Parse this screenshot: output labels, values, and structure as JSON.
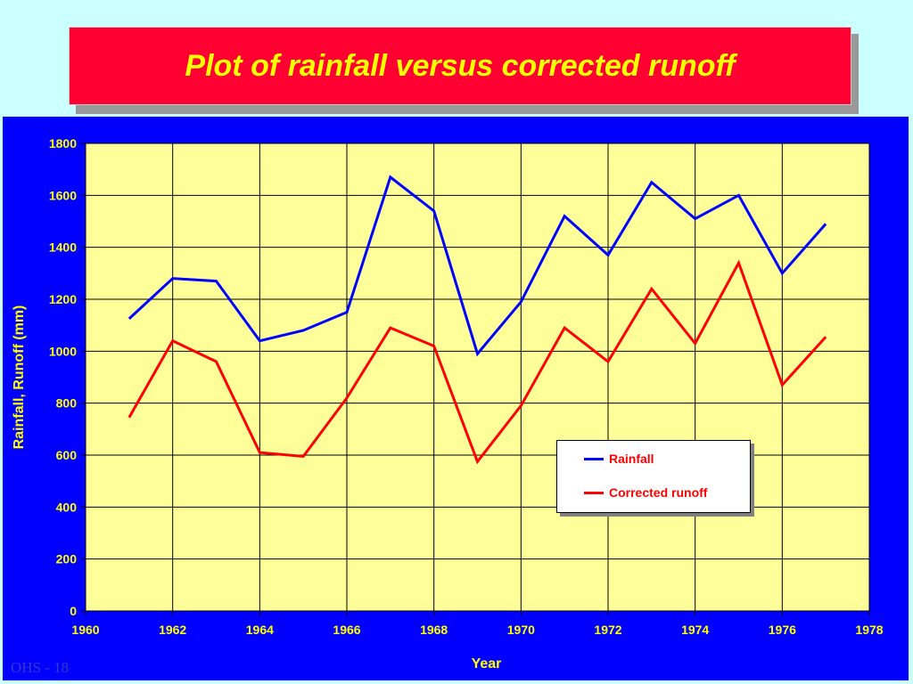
{
  "title": "Plot of rainfall versus corrected runoff",
  "footer": "OHS - 18",
  "colors": {
    "page_bg": "#ccffff",
    "title_bg": "#ff0033",
    "title_text": "#ffff00",
    "panel_bg": "#0000ff",
    "plot_bg": "#ffff99",
    "axis_text": "#ffff00",
    "legend_text": "#ff0000"
  },
  "chart_data": {
    "type": "line",
    "title": "",
    "xlabel": "Year",
    "ylabel": "Rainfall, Runoff (mm)",
    "xlim": [
      1960,
      1978
    ],
    "ylim": [
      0,
      1800
    ],
    "xticks": [
      1960,
      1962,
      1964,
      1966,
      1968,
      1970,
      1972,
      1974,
      1976,
      1978
    ],
    "yticks": [
      0,
      200,
      400,
      600,
      800,
      1000,
      1200,
      1400,
      1600,
      1800
    ],
    "grid": true,
    "legend": "lower-right",
    "x": [
      1961,
      1962,
      1963,
      1964,
      1965,
      1966,
      1967,
      1968,
      1969,
      1970,
      1971,
      1972,
      1973,
      1974,
      1975,
      1976,
      1977
    ],
    "series": [
      {
        "name": "Rainfall",
        "color": "#0000ff",
        "values": [
          1125,
          1280,
          1270,
          1040,
          1080,
          1150,
          1670,
          1540,
          990,
          1190,
          1520,
          1370,
          1650,
          1510,
          1600,
          1300,
          1490
        ]
      },
      {
        "name": "Corrected runoff",
        "color": "#ff0000",
        "values": [
          745,
          1040,
          960,
          610,
          595,
          820,
          1090,
          1020,
          575,
          790,
          1090,
          960,
          1240,
          1030,
          1340,
          870,
          1055
        ]
      }
    ]
  }
}
